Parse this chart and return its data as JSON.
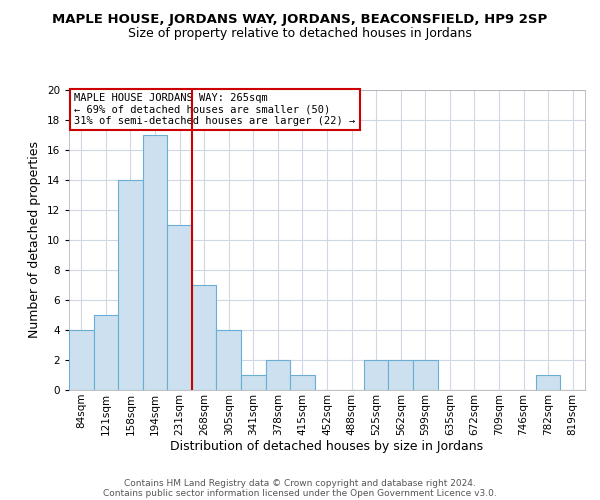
{
  "title": "MAPLE HOUSE, JORDANS WAY, JORDANS, BEACONSFIELD, HP9 2SP",
  "subtitle": "Size of property relative to detached houses in Jordans",
  "xlabel": "Distribution of detached houses by size in Jordans",
  "ylabel": "Number of detached properties",
  "bar_labels": [
    "84sqm",
    "121sqm",
    "158sqm",
    "194sqm",
    "231sqm",
    "268sqm",
    "305sqm",
    "341sqm",
    "378sqm",
    "415sqm",
    "452sqm",
    "488sqm",
    "525sqm",
    "562sqm",
    "599sqm",
    "635sqm",
    "672sqm",
    "709sqm",
    "746sqm",
    "782sqm",
    "819sqm"
  ],
  "bar_values": [
    4,
    5,
    14,
    17,
    11,
    7,
    4,
    1,
    2,
    1,
    0,
    0,
    2,
    2,
    2,
    0,
    0,
    0,
    0,
    1,
    0
  ],
  "bar_color": "#cce0f0",
  "bar_edge_color": "#6aaed6",
  "vline_color": "#cc0000",
  "vline_pos": 4.5,
  "annotation_title": "MAPLE HOUSE JORDANS WAY: 265sqm",
  "annotation_line1": "← 69% of detached houses are smaller (50)",
  "annotation_line2": "31% of semi-detached houses are larger (22) →",
  "annotation_box_color": "#ffffff",
  "annotation_box_edge": "#cc0000",
  "ylim": [
    0,
    20
  ],
  "yticks": [
    0,
    2,
    4,
    6,
    8,
    10,
    12,
    14,
    16,
    18,
    20
  ],
  "footer1": "Contains HM Land Registry data © Crown copyright and database right 2024.",
  "footer2": "Contains public sector information licensed under the Open Government Licence v3.0.",
  "grid_color": "#d0d8e8",
  "background_color": "#ffffff",
  "title_fontsize": 9.5,
  "subtitle_fontsize": 9,
  "axis_label_fontsize": 9,
  "tick_fontsize": 7.5,
  "annotation_fontsize": 7.5,
  "footer_fontsize": 6.5
}
